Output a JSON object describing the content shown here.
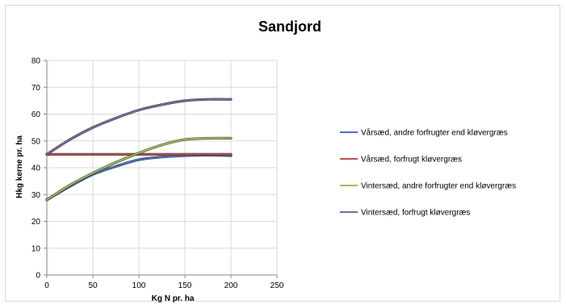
{
  "chart_data": {
    "type": "line",
    "title": "Sandjord",
    "xlabel": "Kg N pr. ha",
    "ylabel": "Hkg kerne pr. ha",
    "xlim": [
      0,
      250
    ],
    "ylim": [
      0,
      80
    ],
    "xticks": [
      0,
      50,
      100,
      150,
      200,
      250
    ],
    "yticks": [
      0,
      10,
      20,
      30,
      40,
      50,
      60,
      70,
      80
    ],
    "grid": true,
    "legend_position": "right",
    "series": [
      {
        "name": "Vårsæd, andre forfrugter end kløvergræs",
        "color": "#4472c4",
        "x": [
          0,
          25,
          50,
          75,
          100,
          125,
          150,
          175,
          200
        ],
        "y": [
          28,
          33,
          37.5,
          40.5,
          43,
          44,
          44.5,
          44.7,
          44.5
        ]
      },
      {
        "name": "Vårsæd, forfrugt kløvergræs",
        "color": "#c0504d",
        "x": [
          0,
          50,
          100,
          150,
          200
        ],
        "y": [
          45,
          45,
          45,
          45,
          45
        ]
      },
      {
        "name": "Vintersæd, andre forfrugter end kløvergræs",
        "color": "#9bbb59",
        "x": [
          0,
          25,
          50,
          75,
          100,
          125,
          150,
          175,
          200
        ],
        "y": [
          28,
          33.5,
          38,
          42,
          45.5,
          48.5,
          50.5,
          51,
          51
        ]
      },
      {
        "name": "Vintersæd, forfrugt kløvergræs",
        "color": "#8064a2",
        "x": [
          0,
          25,
          50,
          75,
          100,
          125,
          150,
          175,
          200
        ],
        "y": [
          45,
          50.5,
          55,
          58.5,
          61.5,
          63.5,
          65,
          65.5,
          65.5
        ]
      }
    ]
  }
}
